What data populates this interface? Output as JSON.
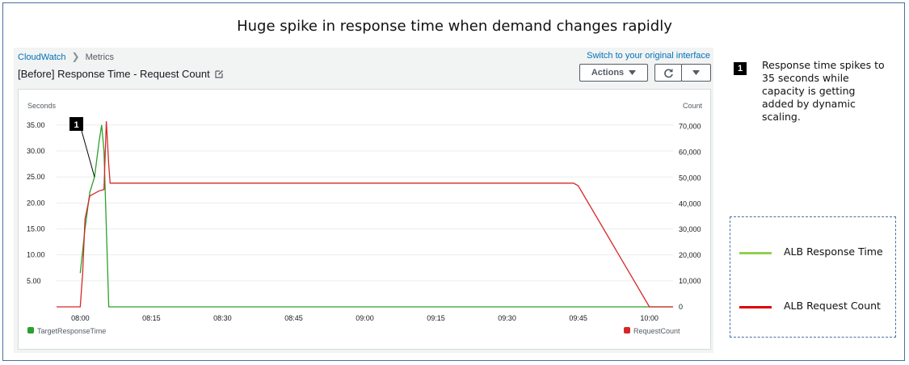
{
  "slide": {
    "title": "Huge spike in response time when demand changes rapidly"
  },
  "console": {
    "breadcrumb": [
      "CloudWatch",
      "Metrics"
    ],
    "switch_link": "Switch to your original interface",
    "widget_title": "[Before] Response Time - Request Count",
    "actions_label": "Actions",
    "refresh_icon": "refresh-icon",
    "dropdown_icon": "caret-down-icon",
    "edit_icon": "edit-icon"
  },
  "callout": {
    "number": "1",
    "text": "Response time spikes to 35 seconds while capacity is getting added by dynamic scaling."
  },
  "legend_box": {
    "items": [
      {
        "label": "ALB Response Time",
        "color": "#92d050"
      },
      {
        "label": "ALB Request Count",
        "color": "#e00000"
      }
    ]
  },
  "chart_data": {
    "type": "line",
    "y_left": {
      "label": "Seconds",
      "ticks": [
        "5.00",
        "10.00",
        "15.00",
        "20.00",
        "25.00",
        "30.00",
        "35.00"
      ],
      "values": [
        5,
        10,
        15,
        20,
        25,
        30,
        35
      ],
      "ylim": [
        0,
        38.7
      ]
    },
    "y_right": {
      "label": "Count",
      "ticks": [
        "0",
        "10,000",
        "20,000",
        "30,000",
        "40,000",
        "50,000",
        "60,000",
        "70,000"
      ],
      "values": [
        0,
        10000,
        20000,
        30000,
        40000,
        50000,
        60000,
        70000
      ],
      "ylim": [
        0,
        78000
      ]
    },
    "x_ticks": [
      "08:00",
      "08:15",
      "08:30",
      "08:45",
      "09:00",
      "09:15",
      "09:30",
      "09:45",
      "10:00"
    ],
    "x_tick_minutes": [
      0,
      15,
      30,
      45,
      60,
      75,
      90,
      105,
      120
    ],
    "xlim": [
      -5,
      125
    ],
    "grid": true,
    "legend_placement": "bottom",
    "series": [
      {
        "name": "TargetResponseTime",
        "axis": "left",
        "color": "#2ca02c",
        "points": [
          [
            0,
            6.5
          ],
          [
            1,
            15
          ],
          [
            2,
            22
          ],
          [
            3,
            25
          ],
          [
            4,
            32
          ],
          [
            4.5,
            35
          ],
          [
            5,
            30
          ],
          [
            6,
            0
          ],
          [
            125,
            0
          ]
        ]
      },
      {
        "name": "RequestCount",
        "axis": "right",
        "color": "#d62728",
        "points": [
          [
            -5,
            0
          ],
          [
            0,
            0
          ],
          [
            0.5,
            13000
          ],
          [
            1,
            34000
          ],
          [
            2,
            43000
          ],
          [
            4,
            45000
          ],
          [
            5,
            45500
          ],
          [
            5.5,
            72000
          ],
          [
            6,
            55000
          ],
          [
            6.3,
            48000
          ],
          [
            104,
            48000
          ],
          [
            105,
            47000
          ],
          [
            120,
            0
          ],
          [
            125,
            0
          ]
        ]
      }
    ],
    "annotation": {
      "label": "1",
      "target_series": "TargetResponseTime"
    }
  }
}
